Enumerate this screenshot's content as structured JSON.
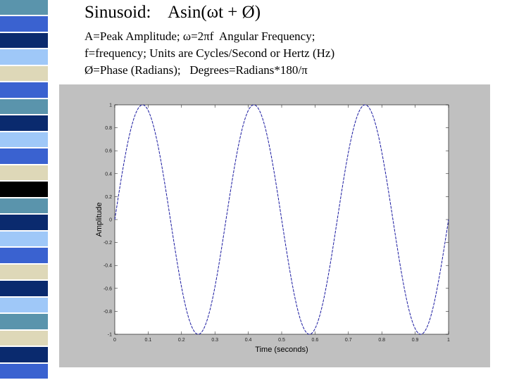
{
  "slide": {
    "title": "Sinusoid:    Asin(ωt + Ø)",
    "lines": [
      "A=Peak Amplitude; ω=2πf  Angular Frequency;",
      "f=frequency; Units are Cycles/Second or Hertz (Hz)",
      "Ø=Phase (Radians);   Degrees=Radians*180/π"
    ],
    "stripe_colors": [
      "#5a94ac",
      "#3a62d0",
      "#0a2a6e",
      "#9fc8f8",
      "#ded8b8",
      "#3a62d0",
      "#5a94ac",
      "#0a2a6e",
      "#9fc8f8",
      "#3a62d0",
      "#ded8b8",
      "#000000",
      "#5a94ac",
      "#0a2a6e",
      "#9fc8f8",
      "#3a62d0",
      "#ded8b8",
      "#0a2a6e",
      "#9fc8f8",
      "#5a94ac",
      "#ded8b8",
      "#0a2a6e",
      "#3a62d0"
    ]
  },
  "chart_data": {
    "type": "line",
    "title": "",
    "xlabel": "Time (seconds)",
    "ylabel": "Amplitude",
    "xlim": [
      0,
      1
    ],
    "ylim": [
      -1,
      1
    ],
    "x_ticks": [
      "0",
      "0.1",
      "0.2",
      "0.3",
      "0.4",
      "0.5",
      "0.6",
      "0.7",
      "0.8",
      "0.9",
      "1"
    ],
    "y_ticks": [
      "1",
      "0.8",
      "0.6",
      "0.4",
      "0.2",
      "0",
      "-0.2",
      "-0.4",
      "-0.6",
      "-0.8",
      "-1"
    ],
    "grid": false,
    "series": [
      {
        "function": "sin(2*pi*f*t)",
        "amplitude": 1,
        "frequency_hz": 3,
        "phase_rad": 0,
        "color": "#1a1aa0",
        "line_style": "dashed"
      }
    ]
  }
}
